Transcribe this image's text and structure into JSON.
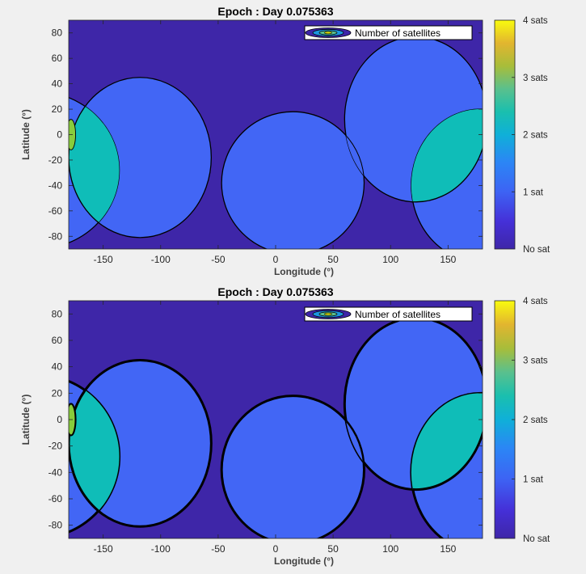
{
  "chart_data": [
    {
      "type": "heatmap",
      "title": "Epoch : Day 0.075363",
      "xlabel": "Longitude (°)",
      "ylabel": "Latitude (°)",
      "xlim": [
        -180,
        180
      ],
      "ylim": [
        -90,
        90
      ],
      "xticks": [
        -150,
        -100,
        -50,
        0,
        50,
        100,
        150
      ],
      "yticks": [
        80,
        60,
        40,
        20,
        0,
        -20,
        -40,
        -60,
        -80
      ],
      "legend": {
        "label": "Number of satellites",
        "placement": "top-right"
      },
      "colorbar": {
        "labels": [
          "4 sats",
          "3 sats",
          "2 sats",
          "1 sat",
          "No sat"
        ],
        "colors": [
          "#f9fb0e",
          "#d9ba2d",
          "#5ac08d",
          "#1b96e0",
          "#3e26a8"
        ]
      },
      "coverage": [
        {
          "name": "",
          "center_lon": -118,
          "center_lat": -18,
          "radius_lon": 62,
          "radius_lat": 63,
          "sats": 1
        },
        {
          "name": "",
          "center_lon": 15,
          "center_lat": -38,
          "radius_lon": 62,
          "radius_lat": 56,
          "sats": 1
        },
        {
          "name": "",
          "center_lon": 122,
          "center_lat": 12,
          "radius_lon": 62,
          "radius_lat": 65,
          "sats": 1
        },
        {
          "name": "",
          "center_lon": 178,
          "center_lat": -40,
          "radius_lon": 60,
          "radius_lat": 60,
          "sats": 1
        },
        {
          "name": "",
          "center_lon": -208,
          "center_lat": -28,
          "radius_lon": 72,
          "radius_lat": 62,
          "sats": 1
        },
        {
          "name": "",
          "center_lon": -178,
          "center_lat": 0,
          "radius_lon": 4,
          "radius_lat": 12,
          "sats": 3
        }
      ],
      "overlap_regions_sats": 2,
      "render": "smooth"
    },
    {
      "type": "heatmap",
      "title": "Epoch : Day 0.075363",
      "xlabel": "Longitude (°)",
      "ylabel": "Latitude (°)",
      "xlim": [
        -180,
        180
      ],
      "ylim": [
        -90,
        90
      ],
      "xticks": [
        -150,
        -100,
        -50,
        0,
        50,
        100,
        150
      ],
      "yticks": [
        80,
        60,
        40,
        20,
        0,
        -20,
        -40,
        -60,
        -80
      ],
      "legend": {
        "label": "Number of satellites",
        "placement": "top-right"
      },
      "colorbar": {
        "labels": [
          "4 sats",
          "3 sats",
          "2 sats",
          "1 sat",
          "No sat"
        ],
        "colors": [
          "#f9fb0e",
          "#d9ba2d",
          "#5ac08d",
          "#1b96e0",
          "#3e26a8"
        ]
      },
      "coverage": [
        {
          "name": "",
          "center_lon": -118,
          "center_lat": -18,
          "radius_lon": 62,
          "radius_lat": 63,
          "sats": 1
        },
        {
          "name": "",
          "center_lon": 15,
          "center_lat": -38,
          "radius_lon": 62,
          "radius_lat": 56,
          "sats": 1
        },
        {
          "name": "",
          "center_lon": 122,
          "center_lat": 12,
          "radius_lon": 62,
          "radius_lat": 65,
          "sats": 1
        },
        {
          "name": "",
          "center_lon": 178,
          "center_lat": -40,
          "radius_lon": 60,
          "radius_lat": 60,
          "sats": 1
        },
        {
          "name": "",
          "center_lon": -208,
          "center_lat": -28,
          "radius_lon": 72,
          "radius_lat": 62,
          "sats": 1
        },
        {
          "name": "",
          "center_lon": -178,
          "center_lat": 0,
          "radius_lon": 4,
          "radius_lat": 12,
          "sats": 3
        }
      ],
      "overlap_regions_sats": 2,
      "render": "pixelated"
    }
  ]
}
